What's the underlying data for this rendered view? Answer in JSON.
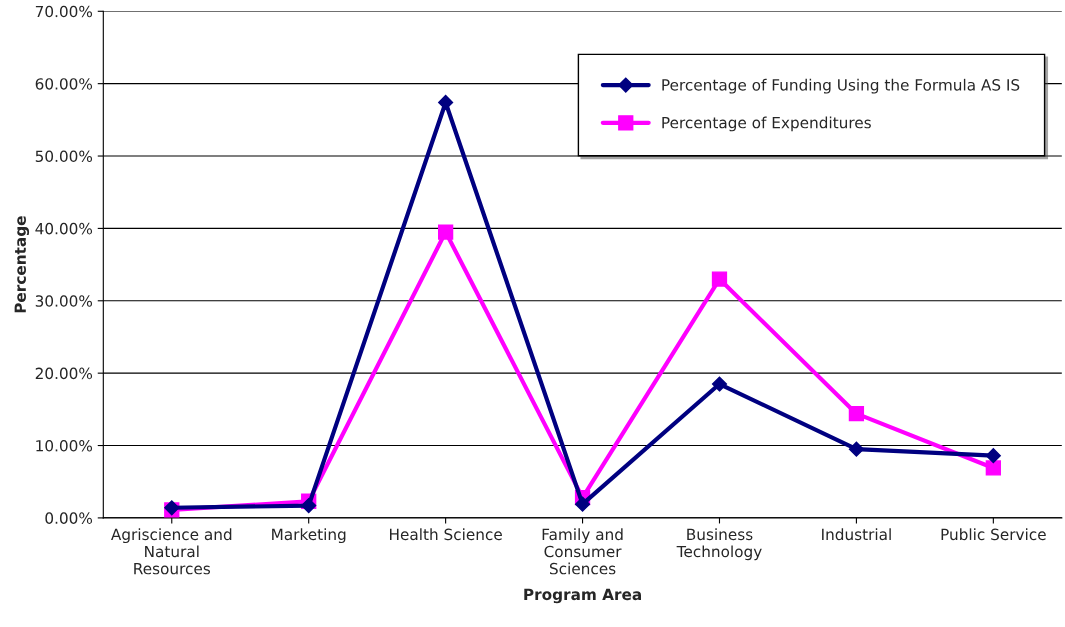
{
  "chart_data": {
    "type": "line",
    "xlabel": "Program Area",
    "ylabel": "Percentage",
    "categories": [
      "Agriscience and\nNatural\nResources",
      "Marketing",
      "Health Science",
      "Family and\nConsumer\nSciences",
      "Business\nTechnology",
      "Industrial",
      "Public Service"
    ],
    "series": [
      {
        "name": "Percentage of Funding Using the Formula AS IS",
        "color": "#000080",
        "marker": "diamond",
        "values": [
          1.4,
          1.7,
          57.4,
          1.9,
          18.5,
          9.5,
          8.6
        ]
      },
      {
        "name": "Percentage of Expenditures",
        "color": "#ff00ff",
        "marker": "square",
        "values": [
          1.1,
          2.3,
          39.5,
          2.8,
          33.0,
          14.4,
          6.9
        ]
      }
    ],
    "ylim": [
      0,
      70
    ],
    "yticks": [
      {
        "value": 0,
        "label": "0.00%"
      },
      {
        "value": 10,
        "label": "10.00%"
      },
      {
        "value": 20,
        "label": "20.00%"
      },
      {
        "value": 30,
        "label": "30.00%"
      },
      {
        "value": 40,
        "label": "40.00%"
      },
      {
        "value": 50,
        "label": "50.00%"
      },
      {
        "value": 60,
        "label": "60.00%"
      },
      {
        "value": 70,
        "label": "70.00%"
      }
    ],
    "grid": "y",
    "legend": "top right",
    "line_style": "solid"
  }
}
